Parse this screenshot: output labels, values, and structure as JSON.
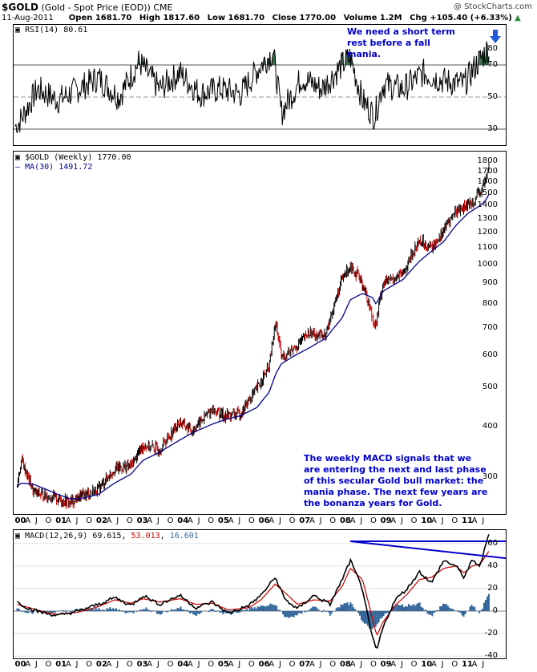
{
  "header": {
    "symbol": "$GOLD",
    "description": "(Gold - Spot Price (EOD))",
    "exchange": "CME",
    "watermark": "@ StockCharts.com",
    "date": "11-Aug-2011",
    "open": "Open 1681.70",
    "high": "High 1817.60",
    "low": "Low 1681.70",
    "close": "Close 1770.00",
    "volume": "Volume 1.2M",
    "change": "Chg +105.40 (+6.33%)"
  },
  "annotations": {
    "rsi_note": "We need a short term rest before a fall mania.",
    "macd_note": "The weekly MACD signals that we are entering the next and last phase of this secular Gold bull market: the mania phase. The next few years are the bonanza years for Gold."
  },
  "colors": {
    "price_up": "#000000",
    "price_down": "#cc0000",
    "ma": "#00008b",
    "macd_line": "#000000",
    "signal_line": "#cc0000",
    "histogram": "#336699",
    "rsi_fill": "#2e5e3e",
    "annotation": "#0000cc",
    "trendline": "#0000cc"
  },
  "chart_data": [
    {
      "type": "line",
      "name": "RSI(14)",
      "label": "RSI(14) 80.61",
      "ylim": [
        20,
        95
      ],
      "yticks": [
        30,
        50,
        70,
        80
      ],
      "reference_lines": [
        30,
        50,
        70
      ],
      "x": [
        2000.0,
        2000.5,
        2001.0,
        2001.5,
        2002.0,
        2002.5,
        2003.0,
        2003.5,
        2004.0,
        2004.5,
        2005.0,
        2005.5,
        2006.0,
        2006.3,
        2006.5,
        2007.0,
        2007.5,
        2008.0,
        2008.2,
        2008.5,
        2008.8,
        2009.0,
        2009.5,
        2010.0,
        2010.5,
        2011.0,
        2011.3,
        2011.6
      ],
      "values": [
        32,
        55,
        48,
        55,
        62,
        50,
        72,
        55,
        65,
        52,
        55,
        52,
        70,
        78,
        40,
        62,
        55,
        70,
        75,
        48,
        38,
        58,
        55,
        65,
        60,
        58,
        70,
        80.61
      ]
    },
    {
      "type": "line",
      "name": "$GOLD (Weekly)",
      "label": "$GOLD (Weekly) 1770.00",
      "ma_label": "MA(30) 1491.72",
      "scale": "log",
      "ylim": [
        250,
        1850
      ],
      "yticks": [
        300,
        400,
        500,
        600,
        700,
        800,
        900,
        1000,
        1100,
        1200,
        1300,
        1400,
        1500,
        1600,
        1700,
        1800
      ],
      "x": [
        2000.0,
        2000.1,
        2000.4,
        2000.7,
        2001.0,
        2001.3,
        2001.6,
        2002.0,
        2002.4,
        2002.8,
        2003.1,
        2003.5,
        2004.0,
        2004.3,
        2004.8,
        2005.1,
        2005.5,
        2005.9,
        2006.2,
        2006.37,
        2006.5,
        2006.8,
        2007.2,
        2007.6,
        2008.0,
        2008.2,
        2008.5,
        2008.75,
        2008.83,
        2009.0,
        2009.5,
        2009.9,
        2010.2,
        2010.5,
        2010.8,
        2011.1,
        2011.4,
        2011.55,
        2011.61
      ],
      "values": [
        285,
        330,
        275,
        270,
        265,
        260,
        270,
        280,
        315,
        320,
        360,
        350,
        410,
        390,
        440,
        425,
        430,
        495,
        560,
        720,
        590,
        620,
        680,
        670,
        920,
        1000,
        900,
        740,
        710,
        900,
        950,
        1150,
        1100,
        1220,
        1360,
        1400,
        1500,
        1630,
        1770
      ],
      "ma": [
        285,
        290,
        288,
        280,
        272,
        265,
        266,
        272,
        290,
        305,
        330,
        345,
        370,
        385,
        405,
        415,
        425,
        445,
        485,
        540,
        570,
        595,
        625,
        660,
        740,
        820,
        850,
        830,
        800,
        860,
        920,
        1020,
        1080,
        1140,
        1250,
        1340,
        1400,
        1450,
        1491.72
      ]
    },
    {
      "type": "line",
      "name": "MACD(12,26,9)",
      "label": "MACD(12,26,9) 69.615, 53.013, 16.601",
      "macd_value": "69.615",
      "signal_value": "53.013",
      "hist_value": "16.601",
      "ylim": [
        -42,
        72
      ],
      "yticks": [
        -40,
        -20,
        0,
        20,
        40,
        60
      ],
      "x": [
        2000.0,
        2000.3,
        2000.7,
        2001.0,
        2001.5,
        2002.0,
        2002.4,
        2002.8,
        2003.1,
        2003.5,
        2004.0,
        2004.4,
        2004.8,
        2005.2,
        2005.7,
        2006.0,
        2006.35,
        2006.6,
        2006.9,
        2007.3,
        2007.7,
        2008.0,
        2008.2,
        2008.5,
        2008.7,
        2008.85,
        2009.0,
        2009.3,
        2009.6,
        2009.9,
        2010.2,
        2010.5,
        2010.8,
        2011.0,
        2011.2,
        2011.4,
        2011.61
      ],
      "macd": [
        8,
        2,
        -2,
        -4,
        0,
        6,
        12,
        5,
        14,
        6,
        14,
        3,
        8,
        -2,
        5,
        14,
        30,
        10,
        2,
        14,
        6,
        28,
        45,
        20,
        -18,
        -35,
        -15,
        10,
        20,
        35,
        25,
        45,
        40,
        30,
        45,
        40,
        69.615
      ],
      "signal": [
        6,
        3,
        -1,
        -3,
        -1,
        4,
        10,
        7,
        11,
        8,
        11,
        6,
        7,
        1,
        3,
        10,
        24,
        16,
        6,
        10,
        9,
        22,
        38,
        28,
        0,
        -22,
        -10,
        5,
        15,
        28,
        30,
        38,
        40,
        34,
        40,
        42,
        53.013
      ]
    }
  ],
  "axes": {
    "x_ticks": [
      {
        "label": "00",
        "bold": true,
        "year": 2000.0
      },
      {
        "label": "A",
        "bold": false,
        "year": 2000.25
      },
      {
        "label": "J",
        "bold": false,
        "year": 2000.5
      },
      {
        "label": "O",
        "bold": false,
        "year": 2000.75
      },
      {
        "label": "01",
        "bold": true,
        "year": 2001.0
      },
      {
        "label": "A",
        "bold": false,
        "year": 2001.25
      },
      {
        "label": "J",
        "bold": false,
        "year": 2001.5
      },
      {
        "label": "O",
        "bold": false,
        "year": 2001.75
      },
      {
        "label": "02",
        "bold": true,
        "year": 2002.0
      },
      {
        "label": "A",
        "bold": false,
        "year": 2002.25
      },
      {
        "label": "J",
        "bold": false,
        "year": 2002.5
      },
      {
        "label": "O",
        "bold": false,
        "year": 2002.75
      },
      {
        "label": "03",
        "bold": true,
        "year": 2003.0
      },
      {
        "label": "A",
        "bold": false,
        "year": 2003.25
      },
      {
        "label": "J",
        "bold": false,
        "year": 2003.5
      },
      {
        "label": "O",
        "bold": false,
        "year": 2003.75
      },
      {
        "label": "04",
        "bold": true,
        "year": 2004.0
      },
      {
        "label": "A",
        "bold": false,
        "year": 2004.25
      },
      {
        "label": "J",
        "bold": false,
        "year": 2004.5
      },
      {
        "label": "O",
        "bold": false,
        "year": 2004.75
      },
      {
        "label": "05",
        "bold": true,
        "year": 2005.0
      },
      {
        "label": "A",
        "bold": false,
        "year": 2005.25
      },
      {
        "label": "J",
        "bold": false,
        "year": 2005.5
      },
      {
        "label": "O",
        "bold": false,
        "year": 2005.75
      },
      {
        "label": "06",
        "bold": true,
        "year": 2006.0
      },
      {
        "label": "A",
        "bold": false,
        "year": 2006.25
      },
      {
        "label": "J",
        "bold": false,
        "year": 2006.5
      },
      {
        "label": "O",
        "bold": false,
        "year": 2006.75
      },
      {
        "label": "07",
        "bold": true,
        "year": 2007.0
      },
      {
        "label": "A",
        "bold": false,
        "year": 2007.25
      },
      {
        "label": "J",
        "bold": false,
        "year": 2007.5
      },
      {
        "label": "O",
        "bold": false,
        "year": 2007.75
      },
      {
        "label": "08",
        "bold": true,
        "year": 2008.0
      },
      {
        "label": "A",
        "bold": false,
        "year": 2008.25
      },
      {
        "label": "J",
        "bold": false,
        "year": 2008.5
      },
      {
        "label": "O",
        "bold": false,
        "year": 2008.75
      },
      {
        "label": "09",
        "bold": true,
        "year": 2009.0
      },
      {
        "label": "A",
        "bold": false,
        "year": 2009.25
      },
      {
        "label": "J",
        "bold": false,
        "year": 2009.5
      },
      {
        "label": "O",
        "bold": false,
        "year": 2009.75
      },
      {
        "label": "10",
        "bold": true,
        "year": 2010.0
      },
      {
        "label": "A",
        "bold": false,
        "year": 2010.25
      },
      {
        "label": "J",
        "bold": false,
        "year": 2010.5
      },
      {
        "label": "O",
        "bold": false,
        "year": 2010.75
      },
      {
        "label": "11",
        "bold": true,
        "year": 2011.0
      },
      {
        "label": "A",
        "bold": false,
        "year": 2011.25
      },
      {
        "label": "J",
        "bold": false,
        "year": 2011.5
      }
    ]
  }
}
